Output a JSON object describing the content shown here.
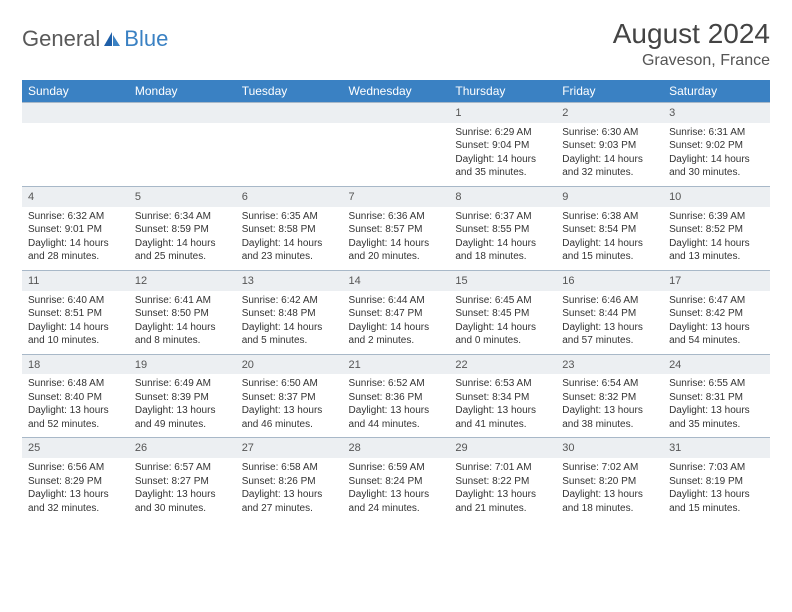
{
  "brand": {
    "name_a": "General",
    "name_b": "Blue"
  },
  "title": "August 2024",
  "location": "Graveson, France",
  "colors": {
    "header_bg": "#3a81c3",
    "header_fg": "#ffffff",
    "daynum_bg": "#eceff2",
    "border": "#a8b8c8",
    "text": "#333333"
  },
  "weekdays": [
    "Sunday",
    "Monday",
    "Tuesday",
    "Wednesday",
    "Thursday",
    "Friday",
    "Saturday"
  ],
  "weeks": [
    [
      null,
      null,
      null,
      null,
      {
        "n": "1",
        "rise": "Sunrise: 6:29 AM",
        "set": "Sunset: 9:04 PM",
        "dl1": "Daylight: 14 hours",
        "dl2": "and 35 minutes."
      },
      {
        "n": "2",
        "rise": "Sunrise: 6:30 AM",
        "set": "Sunset: 9:03 PM",
        "dl1": "Daylight: 14 hours",
        "dl2": "and 32 minutes."
      },
      {
        "n": "3",
        "rise": "Sunrise: 6:31 AM",
        "set": "Sunset: 9:02 PM",
        "dl1": "Daylight: 14 hours",
        "dl2": "and 30 minutes."
      }
    ],
    [
      {
        "n": "4",
        "rise": "Sunrise: 6:32 AM",
        "set": "Sunset: 9:01 PM",
        "dl1": "Daylight: 14 hours",
        "dl2": "and 28 minutes."
      },
      {
        "n": "5",
        "rise": "Sunrise: 6:34 AM",
        "set": "Sunset: 8:59 PM",
        "dl1": "Daylight: 14 hours",
        "dl2": "and 25 minutes."
      },
      {
        "n": "6",
        "rise": "Sunrise: 6:35 AM",
        "set": "Sunset: 8:58 PM",
        "dl1": "Daylight: 14 hours",
        "dl2": "and 23 minutes."
      },
      {
        "n": "7",
        "rise": "Sunrise: 6:36 AM",
        "set": "Sunset: 8:57 PM",
        "dl1": "Daylight: 14 hours",
        "dl2": "and 20 minutes."
      },
      {
        "n": "8",
        "rise": "Sunrise: 6:37 AM",
        "set": "Sunset: 8:55 PM",
        "dl1": "Daylight: 14 hours",
        "dl2": "and 18 minutes."
      },
      {
        "n": "9",
        "rise": "Sunrise: 6:38 AM",
        "set": "Sunset: 8:54 PM",
        "dl1": "Daylight: 14 hours",
        "dl2": "and 15 minutes."
      },
      {
        "n": "10",
        "rise": "Sunrise: 6:39 AM",
        "set": "Sunset: 8:52 PM",
        "dl1": "Daylight: 14 hours",
        "dl2": "and 13 minutes."
      }
    ],
    [
      {
        "n": "11",
        "rise": "Sunrise: 6:40 AM",
        "set": "Sunset: 8:51 PM",
        "dl1": "Daylight: 14 hours",
        "dl2": "and 10 minutes."
      },
      {
        "n": "12",
        "rise": "Sunrise: 6:41 AM",
        "set": "Sunset: 8:50 PM",
        "dl1": "Daylight: 14 hours",
        "dl2": "and 8 minutes."
      },
      {
        "n": "13",
        "rise": "Sunrise: 6:42 AM",
        "set": "Sunset: 8:48 PM",
        "dl1": "Daylight: 14 hours",
        "dl2": "and 5 minutes."
      },
      {
        "n": "14",
        "rise": "Sunrise: 6:44 AM",
        "set": "Sunset: 8:47 PM",
        "dl1": "Daylight: 14 hours",
        "dl2": "and 2 minutes."
      },
      {
        "n": "15",
        "rise": "Sunrise: 6:45 AM",
        "set": "Sunset: 8:45 PM",
        "dl1": "Daylight: 14 hours",
        "dl2": "and 0 minutes."
      },
      {
        "n": "16",
        "rise": "Sunrise: 6:46 AM",
        "set": "Sunset: 8:44 PM",
        "dl1": "Daylight: 13 hours",
        "dl2": "and 57 minutes."
      },
      {
        "n": "17",
        "rise": "Sunrise: 6:47 AM",
        "set": "Sunset: 8:42 PM",
        "dl1": "Daylight: 13 hours",
        "dl2": "and 54 minutes."
      }
    ],
    [
      {
        "n": "18",
        "rise": "Sunrise: 6:48 AM",
        "set": "Sunset: 8:40 PM",
        "dl1": "Daylight: 13 hours",
        "dl2": "and 52 minutes."
      },
      {
        "n": "19",
        "rise": "Sunrise: 6:49 AM",
        "set": "Sunset: 8:39 PM",
        "dl1": "Daylight: 13 hours",
        "dl2": "and 49 minutes."
      },
      {
        "n": "20",
        "rise": "Sunrise: 6:50 AM",
        "set": "Sunset: 8:37 PM",
        "dl1": "Daylight: 13 hours",
        "dl2": "and 46 minutes."
      },
      {
        "n": "21",
        "rise": "Sunrise: 6:52 AM",
        "set": "Sunset: 8:36 PM",
        "dl1": "Daylight: 13 hours",
        "dl2": "and 44 minutes."
      },
      {
        "n": "22",
        "rise": "Sunrise: 6:53 AM",
        "set": "Sunset: 8:34 PM",
        "dl1": "Daylight: 13 hours",
        "dl2": "and 41 minutes."
      },
      {
        "n": "23",
        "rise": "Sunrise: 6:54 AM",
        "set": "Sunset: 8:32 PM",
        "dl1": "Daylight: 13 hours",
        "dl2": "and 38 minutes."
      },
      {
        "n": "24",
        "rise": "Sunrise: 6:55 AM",
        "set": "Sunset: 8:31 PM",
        "dl1": "Daylight: 13 hours",
        "dl2": "and 35 minutes."
      }
    ],
    [
      {
        "n": "25",
        "rise": "Sunrise: 6:56 AM",
        "set": "Sunset: 8:29 PM",
        "dl1": "Daylight: 13 hours",
        "dl2": "and 32 minutes."
      },
      {
        "n": "26",
        "rise": "Sunrise: 6:57 AM",
        "set": "Sunset: 8:27 PM",
        "dl1": "Daylight: 13 hours",
        "dl2": "and 30 minutes."
      },
      {
        "n": "27",
        "rise": "Sunrise: 6:58 AM",
        "set": "Sunset: 8:26 PM",
        "dl1": "Daylight: 13 hours",
        "dl2": "and 27 minutes."
      },
      {
        "n": "28",
        "rise": "Sunrise: 6:59 AM",
        "set": "Sunset: 8:24 PM",
        "dl1": "Daylight: 13 hours",
        "dl2": "and 24 minutes."
      },
      {
        "n": "29",
        "rise": "Sunrise: 7:01 AM",
        "set": "Sunset: 8:22 PM",
        "dl1": "Daylight: 13 hours",
        "dl2": "and 21 minutes."
      },
      {
        "n": "30",
        "rise": "Sunrise: 7:02 AM",
        "set": "Sunset: 8:20 PM",
        "dl1": "Daylight: 13 hours",
        "dl2": "and 18 minutes."
      },
      {
        "n": "31",
        "rise": "Sunrise: 7:03 AM",
        "set": "Sunset: 8:19 PM",
        "dl1": "Daylight: 13 hours",
        "dl2": "and 15 minutes."
      }
    ]
  ]
}
